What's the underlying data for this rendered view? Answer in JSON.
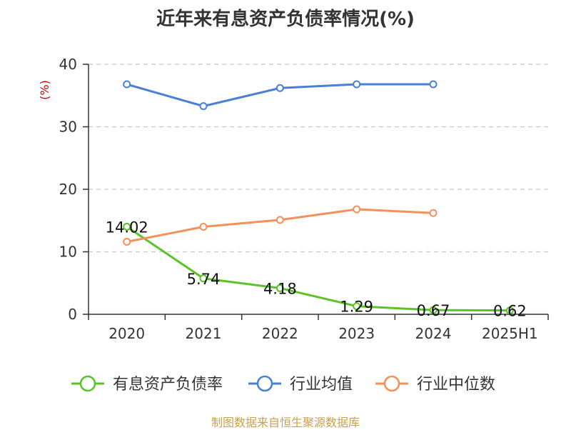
{
  "title": "近年来有息资产负债率情况(%)",
  "source": "制图数据来自恒生聚源数据库",
  "chart_data": {
    "type": "line",
    "title": "近年来有息资产负债率情况(%)",
    "ylabel": "(%)",
    "xlabel": "",
    "categories": [
      "2020",
      "2021",
      "2022",
      "2023",
      "2024",
      "2025H1"
    ],
    "ylim": [
      0,
      40
    ],
    "yticks": [
      0,
      10,
      20,
      30,
      40
    ],
    "grid": true,
    "legend_position": "bottom",
    "series": [
      {
        "name": "有息资产负债率",
        "color": "#5cc326",
        "values": [
          14.02,
          5.74,
          4.18,
          1.29,
          0.67,
          0.62
        ],
        "labels": [
          "14.02",
          "5.74",
          "4.18",
          "1.29",
          "0.67",
          "0.62"
        ]
      },
      {
        "name": "行业均值",
        "color": "#4a7fd6",
        "values": [
          36.8,
          33.3,
          36.2,
          36.8,
          36.8,
          null
        ]
      },
      {
        "name": "行业中位数",
        "color": "#f5905a",
        "values": [
          11.6,
          14.0,
          15.1,
          16.8,
          16.2,
          null
        ]
      }
    ]
  }
}
